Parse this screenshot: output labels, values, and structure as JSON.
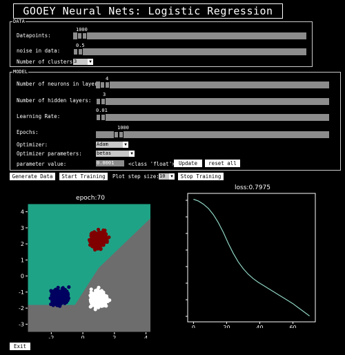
{
  "window": {
    "title": "GOOEY Neural Nets: Logistic Regression"
  },
  "data_section": {
    "label": "DATA",
    "datapoints": {
      "label": "Datapoints:",
      "value": "1000",
      "fraction": 0.02
    },
    "noise": {
      "label": "noise in data:",
      "value": "0.5",
      "fraction": 0.0
    },
    "clusters": {
      "label": "Number of clusters:",
      "value": "3"
    }
  },
  "model_section": {
    "label": "MODEL",
    "neurons": {
      "label": "Number of neurons in layer:",
      "value": "4",
      "fraction": 0.02
    },
    "hidden_layers": {
      "label": "Number of hidden layers:",
      "value": "3",
      "fraction": 0.0
    },
    "learning_rate": {
      "label": "Learning Rate:",
      "value": "0.01",
      "fraction": 0.0
    },
    "epochs": {
      "label": "Epochs:",
      "value": "1000",
      "fraction": 0.08
    },
    "optimizer": {
      "label": "Optimizer:",
      "value": "Adam"
    },
    "optimizer_params": {
      "label": "Optimizer parameters:",
      "value": "betas"
    },
    "param_value": {
      "label": "parameter value:",
      "value": "0.0001",
      "type_text": "<class 'float'>"
    },
    "update_label": "Update",
    "reset_label": "reset all"
  },
  "controls": {
    "generate_label": "Generate Data",
    "start_label": "Start Training",
    "plot_step_label": "Plot step size:",
    "plot_step_value": "10",
    "stop_label": "Stop Training"
  },
  "exit_label": "Exit",
  "colors": {
    "region_teal": "#1fa386",
    "region_gray": "#6d6d6d",
    "cluster_red": "#800000",
    "cluster_navy": "#000060",
    "cluster_white": "#ffffff",
    "loss_line": "#8fd5c3"
  },
  "chart_data": [
    {
      "type": "scatter",
      "title": "epoch:70",
      "xlim": [
        -3.5,
        4.5
      ],
      "ylim": [
        -3.5,
        4.5
      ],
      "xticks": [
        "-2",
        "0",
        "2",
        "4"
      ],
      "yticks": [
        "4",
        "3",
        "2",
        "1",
        "0",
        "-1",
        "-2",
        "-3"
      ],
      "clusters": [
        {
          "center": [
            1.0,
            2.3
          ],
          "spread": 0.45,
          "color": "#800000"
        },
        {
          "center": [
            -1.5,
            -1.3
          ],
          "spread": 0.45,
          "color": "#000060"
        },
        {
          "center": [
            1.0,
            -1.4
          ],
          "spread": 0.45,
          "color": "#ffffff"
        }
      ],
      "regions": [
        "teal upper-left",
        "gray lower-right"
      ]
    },
    {
      "type": "line",
      "title": "loss:0.7975",
      "xlim": [
        -3.5,
        73.5
      ],
      "xticks": [
        "0",
        "20",
        "40",
        "60"
      ],
      "x": [
        0,
        3,
        6,
        9,
        12,
        15,
        18,
        21,
        24,
        27,
        30,
        33,
        36,
        39,
        42,
        45,
        48,
        51,
        54,
        57,
        60,
        63,
        66,
        70
      ],
      "y": [
        1.0,
        0.985,
        0.96,
        0.925,
        0.875,
        0.81,
        0.73,
        0.64,
        0.56,
        0.49,
        0.435,
        0.39,
        0.355,
        0.325,
        0.3,
        0.275,
        0.25,
        0.225,
        0.2,
        0.175,
        0.15,
        0.12,
        0.09,
        0.05
      ]
    }
  ]
}
